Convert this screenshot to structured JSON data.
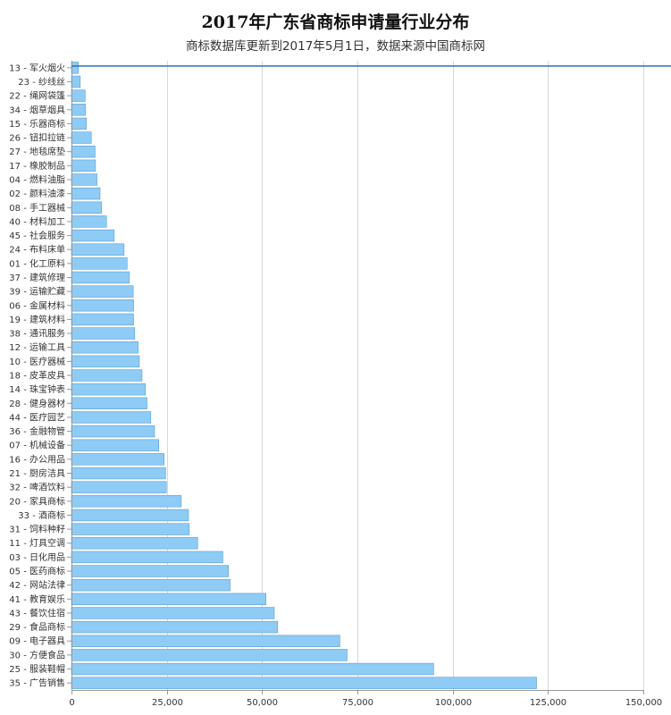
{
  "chart_data": {
    "type": "bar",
    "orientation": "horizontal",
    "title": "2017年广东省商标申请量行业分布",
    "subtitle": "商标数据库更新到2017年5月1日，数据来源中国商标网",
    "xlabel": "",
    "ylabel": "",
    "xlim": [
      0,
      150000
    ],
    "xticks": [
      "0",
      "25,000",
      "50,000",
      "75,000",
      "100,000",
      "125,000",
      "150,000"
    ],
    "grid": true,
    "bar_color": "#8ecbf5",
    "bar_border_color": "#5a9fd6",
    "reference_line_color": "#2f6fb5",
    "categories": [
      "13 - 军火烟火",
      "23 - 纱线丝",
      "22 - 绳网袋篷",
      "34 - 烟草烟具",
      "15 - 乐器商标",
      "26 - 钮扣拉链",
      "27 - 地毯席垫",
      "17 - 橡胶制品",
      "04 - 燃料油脂",
      "02 - 颜料油漆",
      "08 - 手工器械",
      "40 - 材料加工",
      "45 - 社会服务",
      "24 - 布料床单",
      "01 - 化工原料",
      "37 - 建筑修理",
      "39 - 运输贮藏",
      "06 - 金属材料",
      "19 - 建筑材料",
      "38 - 通讯服务",
      "12 - 运输工具",
      "10 - 医疗器械",
      "18 - 皮革皮具",
      "14 - 珠宝钟表",
      "28 - 健身器材",
      "44 - 医疗园艺",
      "36 - 金融物管",
      "07 - 机械设备",
      "16 - 办公用品",
      "21 - 厨房洁具",
      "32 - 啤酒饮料",
      "20 - 家具商标",
      "33 - 酒商标",
      "31 - 饲料种籽",
      "11 - 灯具空调",
      "03 - 日化用品",
      "05 - 医药商标",
      "42 - 网站法律",
      "41 - 教育娱乐",
      "43 - 餐饮住宿",
      "29 - 食品商标",
      "09 - 电子器具",
      "30 - 方便食品",
      "25 - 服装鞋帽",
      "35 - 广告销售"
    ],
    "values": [
      1800,
      2300,
      3600,
      3700,
      3900,
      5200,
      6200,
      6300,
      6700,
      7500,
      7900,
      9200,
      11200,
      13800,
      14600,
      15200,
      16200,
      16300,
      16300,
      16600,
      17500,
      17800,
      18500,
      19400,
      19800,
      20800,
      21800,
      22900,
      24300,
      24700,
      24900,
      28800,
      30700,
      30900,
      33100,
      39700,
      41200,
      41600,
      51000,
      53200,
      54100,
      70400,
      72300,
      95000,
      122000
    ]
  }
}
